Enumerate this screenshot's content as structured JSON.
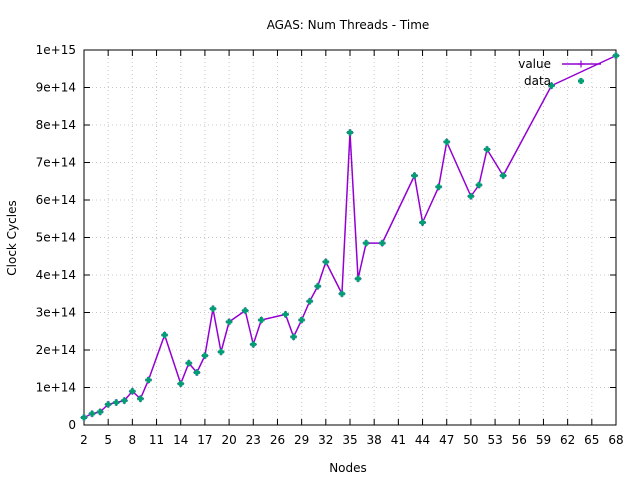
{
  "chart_data": {
    "type": "line",
    "title": "AGAS: Num Threads - Time",
    "xlabel": "Nodes",
    "ylabel": "Clock Cycles",
    "xlim": [
      2,
      68
    ],
    "ylim": [
      0,
      1000000000000000.0
    ],
    "x_ticks": [
      2,
      5,
      8,
      11,
      14,
      17,
      20,
      23,
      26,
      29,
      32,
      35,
      38,
      41,
      44,
      47,
      50,
      53,
      56,
      59,
      62,
      65,
      68
    ],
    "y_ticks": [
      {
        "value": 0,
        "label": "0"
      },
      {
        "value": 100000000000000.0,
        "label": "1e+14"
      },
      {
        "value": 200000000000000.0,
        "label": "2e+14"
      },
      {
        "value": 300000000000000.0,
        "label": "3e+14"
      },
      {
        "value": 400000000000000.0,
        "label": "4e+14"
      },
      {
        "value": 500000000000000.0,
        "label": "5e+14"
      },
      {
        "value": 600000000000000.0,
        "label": "6e+14"
      },
      {
        "value": 700000000000000.0,
        "label": "7e+14"
      },
      {
        "value": 800000000000000.0,
        "label": "8e+14"
      },
      {
        "value": 900000000000000.0,
        "label": "9e+14"
      },
      {
        "value": 1000000000000000.0,
        "label": "1e+15"
      }
    ],
    "grid": true,
    "legend_position": "top-right",
    "series": [
      {
        "name": "value",
        "color": "#9400d3",
        "style": "line-points",
        "points": [
          [
            2,
            20000000000000.0
          ],
          [
            3,
            30000000000000.0
          ],
          [
            4,
            35000000000000.0
          ],
          [
            5,
            55000000000000.0
          ],
          [
            6,
            60000000000000.0
          ],
          [
            7,
            65000000000000.0
          ],
          [
            8,
            90000000000000.0
          ],
          [
            9,
            70000000000000.0
          ],
          [
            10,
            120000000000000.0
          ],
          [
            12,
            240000000000000.0
          ],
          [
            14,
            110000000000000.0
          ],
          [
            15,
            165000000000000.0
          ],
          [
            16,
            140000000000000.0
          ],
          [
            17,
            185000000000000.0
          ],
          [
            18,
            310000000000000.0
          ],
          [
            19,
            195000000000000.0
          ],
          [
            20,
            275000000000000.0
          ],
          [
            22,
            305000000000000.0
          ],
          [
            23,
            215000000000000.0
          ],
          [
            24,
            280000000000000.0
          ],
          [
            27,
            295000000000000.0
          ],
          [
            28,
            235000000000000.0
          ],
          [
            29,
            280000000000000.0
          ],
          [
            30,
            330000000000000.0
          ],
          [
            31,
            370000000000000.0
          ],
          [
            32,
            435000000000000.0
          ],
          [
            34,
            350000000000000.0
          ],
          [
            35,
            780000000000000.0
          ],
          [
            36,
            390000000000000.0
          ],
          [
            37,
            485000000000000.0
          ],
          [
            39,
            485000000000000.0
          ],
          [
            43,
            665000000000000.0
          ],
          [
            44,
            540000000000000.0
          ],
          [
            46,
            635000000000000.0
          ],
          [
            47,
            755000000000000.0
          ],
          [
            50,
            610000000000000.0
          ],
          [
            51,
            640000000000000.0
          ],
          [
            52,
            735000000000000.0
          ],
          [
            54,
            665000000000000.0
          ],
          [
            60,
            905000000000000.0
          ],
          [
            68,
            985000000000000.0
          ]
        ]
      },
      {
        "name": "data",
        "color": "#009e73",
        "style": "points",
        "points": [
          [
            2,
            20000000000000.0
          ],
          [
            3,
            30000000000000.0
          ],
          [
            4,
            35000000000000.0
          ],
          [
            5,
            55000000000000.0
          ],
          [
            6,
            60000000000000.0
          ],
          [
            7,
            65000000000000.0
          ],
          [
            8,
            90000000000000.0
          ],
          [
            9,
            70000000000000.0
          ],
          [
            10,
            120000000000000.0
          ],
          [
            12,
            240000000000000.0
          ],
          [
            14,
            110000000000000.0
          ],
          [
            15,
            165000000000000.0
          ],
          [
            16,
            140000000000000.0
          ],
          [
            17,
            185000000000000.0
          ],
          [
            18,
            310000000000000.0
          ],
          [
            19,
            195000000000000.0
          ],
          [
            20,
            275000000000000.0
          ],
          [
            22,
            305000000000000.0
          ],
          [
            23,
            215000000000000.0
          ],
          [
            24,
            280000000000000.0
          ],
          [
            27,
            295000000000000.0
          ],
          [
            28,
            235000000000000.0
          ],
          [
            29,
            280000000000000.0
          ],
          [
            30,
            330000000000000.0
          ],
          [
            31,
            370000000000000.0
          ],
          [
            32,
            435000000000000.0
          ],
          [
            34,
            350000000000000.0
          ],
          [
            35,
            780000000000000.0
          ],
          [
            36,
            390000000000000.0
          ],
          [
            37,
            485000000000000.0
          ],
          [
            39,
            485000000000000.0
          ],
          [
            43,
            665000000000000.0
          ],
          [
            44,
            540000000000000.0
          ],
          [
            46,
            635000000000000.0
          ],
          [
            47,
            755000000000000.0
          ],
          [
            50,
            610000000000000.0
          ],
          [
            51,
            640000000000000.0
          ],
          [
            52,
            735000000000000.0
          ],
          [
            54,
            665000000000000.0
          ],
          [
            60,
            905000000000000.0
          ],
          [
            68,
            985000000000000.0
          ]
        ]
      }
    ]
  }
}
